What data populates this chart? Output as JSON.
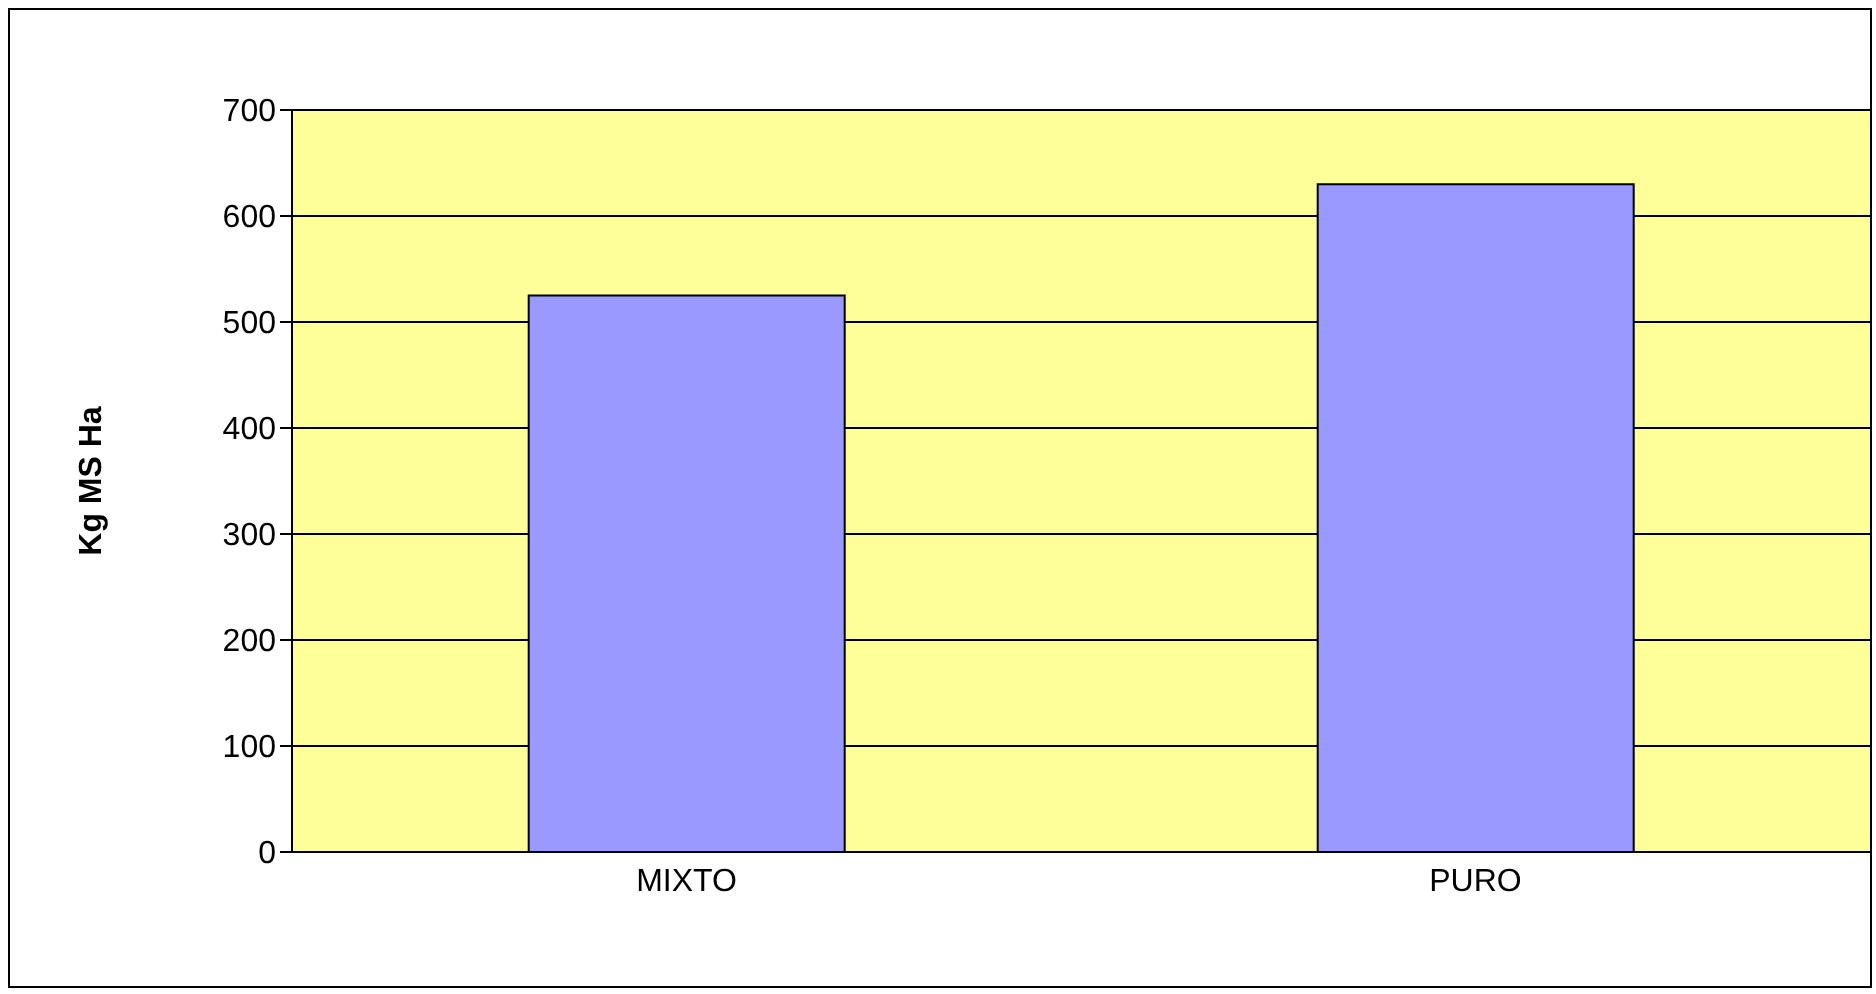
{
  "chart_data": {
    "type": "bar",
    "ylabel": "Kg MS Ha",
    "categories": [
      "MIXTO",
      "PURO"
    ],
    "values": [
      525,
      630
    ],
    "color": "#9999ff",
    "ylim": [
      0,
      700
    ],
    "yticks": [
      0,
      100,
      200,
      300,
      400,
      500,
      600,
      700
    ],
    "grid": "y",
    "legend": false
  }
}
